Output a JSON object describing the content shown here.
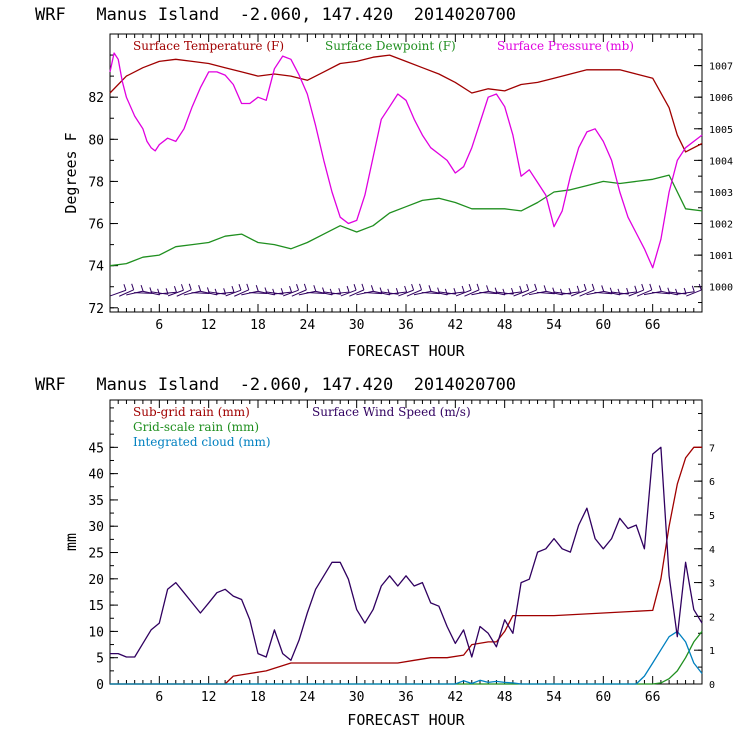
{
  "chart_data": [
    {
      "type": "line",
      "title": "WRF   Manus Island  -2.060, 147.420  2014020700",
      "xlabel": "FORECAST HOUR",
      "ylabel": "Degrees F",
      "x_ticks": [
        6,
        12,
        18,
        24,
        30,
        36,
        42,
        48,
        54,
        60,
        66
      ],
      "xlim": [
        0,
        72
      ],
      "y_ticks": [
        72,
        74,
        76,
        78,
        80,
        82
      ],
      "ylim": [
        71.8,
        85.0
      ],
      "y2_ticks": [
        1000,
        1001,
        1002,
        1003,
        1004,
        1005,
        1006,
        1007
      ],
      "y2lim": [
        999.2,
        1008.0
      ],
      "legend": [
        {
          "label": "Surface Temperature (F)",
          "color": "#a00000"
        },
        {
          "label": "Surface Dewpoint (F)",
          "color": "#1f8f1f"
        },
        {
          "label": "Surface Pressure (mb)",
          "color": "#e000e0"
        }
      ],
      "series": [
        {
          "name": "Surface Temperature (F)",
          "color": "#a00000",
          "axis": "left",
          "x": [
            0,
            2,
            4,
            6,
            8,
            10,
            12,
            14,
            16,
            18,
            20,
            22,
            24,
            26,
            28,
            30,
            32,
            34,
            36,
            38,
            40,
            42,
            44,
            46,
            48,
            50,
            52,
            54,
            56,
            58,
            60,
            62,
            64,
            66,
            68,
            69,
            70,
            72
          ],
          "y": [
            82.2,
            83.0,
            83.4,
            83.7,
            83.8,
            83.7,
            83.6,
            83.4,
            83.2,
            83.0,
            83.1,
            83.0,
            82.8,
            83.2,
            83.6,
            83.7,
            83.9,
            84.0,
            83.7,
            83.4,
            83.1,
            82.7,
            82.2,
            82.4,
            82.3,
            82.6,
            82.7,
            82.9,
            83.1,
            83.3,
            83.3,
            83.3,
            83.1,
            82.9,
            81.5,
            80.2,
            79.4,
            79.8
          ]
        },
        {
          "name": "Surface Dewpoint (F)",
          "color": "#1f8f1f",
          "axis": "left",
          "x": [
            0,
            2,
            4,
            6,
            8,
            10,
            12,
            14,
            16,
            18,
            20,
            22,
            24,
            26,
            28,
            30,
            32,
            34,
            36,
            38,
            40,
            42,
            44,
            46,
            48,
            50,
            52,
            54,
            56,
            58,
            60,
            62,
            64,
            66,
            68,
            70,
            72
          ],
          "y": [
            74.0,
            74.1,
            74.4,
            74.5,
            74.9,
            75.0,
            75.1,
            75.4,
            75.5,
            75.1,
            75.0,
            74.8,
            75.1,
            75.5,
            75.9,
            75.6,
            75.9,
            76.5,
            76.8,
            77.1,
            77.2,
            77.0,
            76.7,
            76.7,
            76.7,
            76.6,
            77.0,
            77.5,
            77.6,
            77.8,
            78.0,
            77.9,
            78.0,
            78.1,
            78.3,
            76.7,
            76.6
          ]
        },
        {
          "name": "Surface Pressure (mb)",
          "color": "#e000e0",
          "axis": "right",
          "x": [
            0,
            0.5,
            1,
            1.5,
            2,
            3,
            4,
            4.5,
            5,
            5.5,
            6,
            7,
            8,
            9,
            10,
            11,
            12,
            13,
            14,
            15,
            16,
            17,
            18,
            19,
            20,
            21,
            22,
            23,
            24,
            25,
            26,
            27,
            28,
            29,
            30,
            31,
            32,
            33,
            34,
            35,
            36,
            37,
            38,
            39,
            40,
            41,
            42,
            43,
            44,
            45,
            46,
            47,
            48,
            49,
            50,
            51,
            52,
            53,
            54,
            55,
            56,
            57,
            58,
            59,
            60,
            61,
            62,
            63,
            64,
            65,
            66,
            67,
            68,
            69,
            70,
            71,
            72
          ],
          "y": [
            1006.8,
            1007.4,
            1007.2,
            1006.5,
            1006.0,
            1005.4,
            1005.0,
            1004.6,
            1004.4,
            1004.3,
            1004.5,
            1004.7,
            1004.6,
            1005.0,
            1005.7,
            1006.3,
            1006.8,
            1006.8,
            1006.7,
            1006.4,
            1005.8,
            1005.8,
            1006.0,
            1005.9,
            1006.9,
            1007.3,
            1007.2,
            1006.7,
            1006.1,
            1005.1,
            1004.0,
            1003.0,
            1002.2,
            1002.0,
            1002.1,
            1002.9,
            1004.1,
            1005.3,
            1005.7,
            1006.1,
            1005.9,
            1005.3,
            1004.8,
            1004.4,
            1004.2,
            1004.0,
            1003.6,
            1003.8,
            1004.4,
            1005.2,
            1006.0,
            1006.1,
            1005.7,
            1004.8,
            1003.5,
            1003.7,
            1003.3,
            1002.9,
            1001.9,
            1002.4,
            1003.5,
            1004.4,
            1004.9,
            1005.0,
            1004.6,
            1004.0,
            1003.0,
            1002.2,
            1001.7,
            1001.2,
            1000.6,
            1001.5,
            1003.0,
            1004.0,
            1004.4,
            1004.6,
            1004.8
          ]
        }
      ],
      "wind_barbs_y": 72.7
    },
    {
      "type": "line",
      "title": "WRF   Manus Island  -2.060, 147.420  2014020700",
      "xlabel": "FORECAST HOUR",
      "ylabel": "mm",
      "x_ticks": [
        6,
        12,
        18,
        24,
        30,
        36,
        42,
        48,
        54,
        60,
        66
      ],
      "xlim": [
        0,
        72
      ],
      "y_ticks": [
        0,
        5,
        10,
        15,
        20,
        25,
        30,
        35,
        40,
        45
      ],
      "ylim": [
        0,
        54
      ],
      "y2_ticks": [
        0,
        1,
        2,
        3,
        4,
        5,
        6,
        7
      ],
      "y2lim": [
        0,
        8.4
      ],
      "legend": [
        {
          "label": "Sub-grid rain (mm)",
          "color": "#a00000"
        },
        {
          "label": "Grid-scale rain (mm)",
          "color": "#1f8f1f"
        },
        {
          "label": "Integrated cloud (mm)",
          "color": "#0080c0"
        },
        {
          "label": "Surface Wind Speed (m/s)",
          "color": "#300060"
        }
      ],
      "series": [
        {
          "name": "Sub-grid rain (mm)",
          "color": "#a00000",
          "axis": "left",
          "x": [
            0,
            14,
            15,
            17,
            19,
            20,
            21,
            22,
            28,
            35,
            37,
            39,
            41,
            43,
            44,
            46,
            47,
            48,
            49,
            54,
            60,
            66,
            67,
            68,
            69,
            70,
            71,
            72
          ],
          "y": [
            0,
            0,
            1.5,
            2.0,
            2.5,
            3.0,
            3.5,
            4.0,
            4.0,
            4.0,
            4.5,
            5.0,
            5.0,
            5.5,
            7.5,
            8.0,
            8.0,
            10.0,
            13.0,
            13.0,
            13.5,
            14.0,
            20.0,
            30.0,
            38.0,
            43.0,
            45.0,
            45.0
          ]
        },
        {
          "name": "Grid-scale rain (mm)",
          "color": "#1f8f1f",
          "axis": "left",
          "x": [
            0,
            66,
            67,
            68,
            69,
            70,
            71,
            72
          ],
          "y": [
            0,
            0,
            0.2,
            1.0,
            2.5,
            5.0,
            8.0,
            10.0
          ]
        },
        {
          "name": "Integrated cloud (mm)",
          "color": "#0080c0",
          "axis": "left",
          "x": [
            0,
            42,
            43,
            44,
            45,
            46,
            47,
            48,
            49,
            50,
            64,
            65,
            66,
            67,
            68,
            69,
            70,
            71,
            72
          ],
          "y": [
            0,
            0,
            0.6,
            0.1,
            0.7,
            0.3,
            0.5,
            0.3,
            0.2,
            0,
            0,
            1.5,
            4.0,
            6.5,
            9.0,
            10.0,
            8.0,
            4.0,
            2.0
          ]
        },
        {
          "name": "Surface Wind Speed (m/s)",
          "color": "#300060",
          "axis": "right",
          "x": [
            0,
            1,
            2,
            3,
            4,
            5,
            6,
            7,
            8,
            9,
            10,
            11,
            12,
            13,
            14,
            15,
            16,
            17,
            18,
            19,
            20,
            21,
            22,
            23,
            24,
            25,
            26,
            27,
            28,
            29,
            30,
            31,
            32,
            33,
            34,
            35,
            36,
            37,
            38,
            39,
            40,
            41,
            42,
            43,
            44,
            45,
            46,
            47,
            48,
            49,
            50,
            51,
            52,
            53,
            54,
            55,
            56,
            57,
            58,
            59,
            60,
            61,
            62,
            63,
            64,
            65,
            66,
            67,
            68,
            69,
            70,
            71,
            72
          ],
          "y": [
            0.9,
            0.9,
            0.8,
            0.8,
            1.2,
            1.6,
            1.8,
            2.8,
            3.0,
            2.7,
            2.4,
            2.1,
            2.4,
            2.7,
            2.8,
            2.6,
            2.5,
            1.9,
            0.9,
            0.8,
            1.6,
            0.9,
            0.7,
            1.3,
            2.1,
            2.8,
            3.2,
            3.6,
            3.6,
            3.1,
            2.2,
            1.8,
            2.2,
            2.9,
            3.2,
            2.9,
            3.2,
            2.9,
            3.0,
            2.4,
            2.3,
            1.7,
            1.2,
            1.6,
            0.8,
            1.7,
            1.5,
            1.1,
            1.9,
            1.5,
            3.0,
            3.1,
            3.9,
            4.0,
            4.3,
            4.0,
            3.9,
            4.7,
            5.2,
            4.3,
            4.0,
            4.3,
            4.9,
            4.6,
            4.7,
            4.0,
            6.8,
            7.0,
            3.2,
            1.4,
            3.6,
            2.2,
            1.8
          ]
        }
      ]
    }
  ]
}
